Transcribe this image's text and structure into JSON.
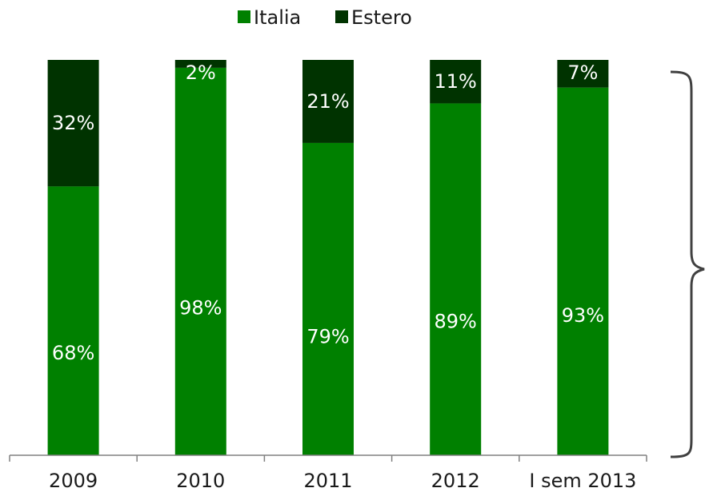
{
  "chart_data": {
    "type": "bar",
    "stacked": true,
    "percent_stacked": true,
    "categories": [
      "2009",
      "2010",
      "2011",
      "2012",
      "I sem 2013"
    ],
    "series": [
      {
        "name": "Italia",
        "color": "#008000",
        "values": [
          68,
          98,
          79,
          89,
          93
        ],
        "labels": [
          "68%",
          "98%",
          "79%",
          "89%",
          "93%"
        ]
      },
      {
        "name": "Estero",
        "color": "#003300",
        "values": [
          32,
          2,
          21,
          11,
          7
        ],
        "labels": [
          "32%",
          "2%",
          "21%",
          "11%",
          "7%"
        ]
      }
    ],
    "ylim": [
      0,
      100
    ],
    "grid": false,
    "legend_position": "top",
    "annotation": "right-brace"
  }
}
